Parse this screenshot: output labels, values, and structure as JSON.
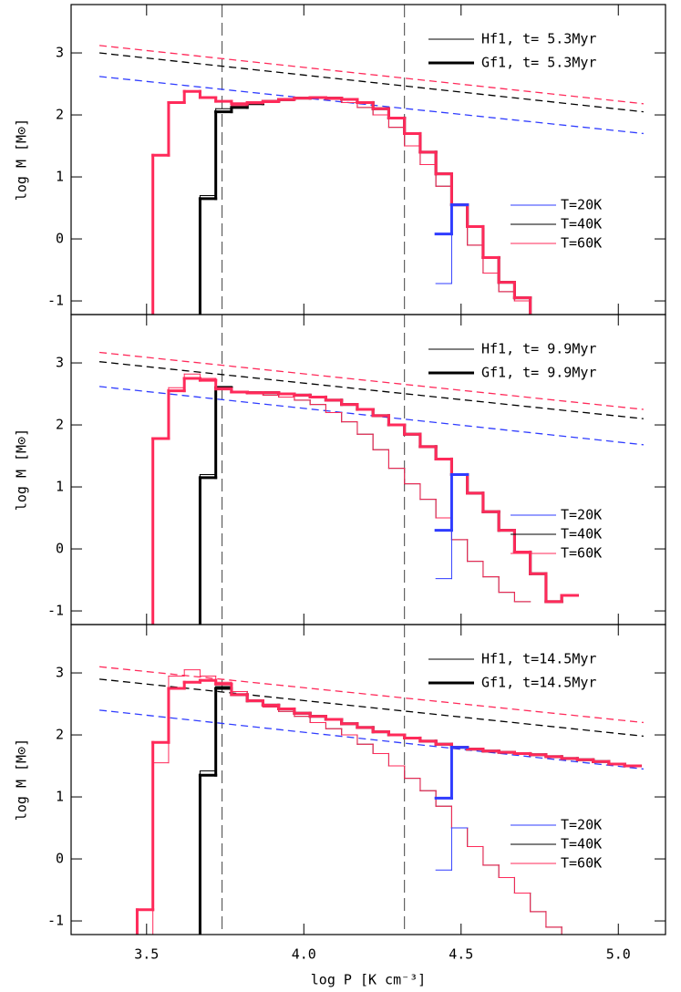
{
  "chart_data": [
    {
      "type": "histogram",
      "ylabel": "log M [M⊙]",
      "xlim": [
        3.26,
        5.15
      ],
      "ylim": [
        -1.22,
        3.78
      ],
      "yticks": [
        -1,
        0,
        1,
        2,
        3
      ],
      "vlines": [
        3.74,
        4.32
      ],
      "legend": [
        {
          "label": "Hf1, t= 5.3Myr",
          "width": 1
        },
        {
          "label": "Gf1, t= 5.3Myr",
          "width": 3
        }
      ],
      "color_legend": [
        {
          "label": "T=20K",
          "color": "#2f3cff"
        },
        {
          "label": "T=40K",
          "color": "#000000"
        },
        {
          "label": "T=60K",
          "color": "#ff2a5a"
        }
      ],
      "bins": [
        3.42,
        3.47,
        3.52,
        3.57,
        3.62,
        3.67,
        3.72,
        3.77,
        3.82,
        3.87,
        3.92,
        3.97,
        4.02,
        4.07,
        4.12,
        4.17,
        4.22,
        4.27,
        4.32,
        4.37,
        4.42,
        4.47,
        4.52,
        4.57,
        4.62,
        4.67,
        4.72,
        4.77,
        4.82,
        4.87,
        4.92,
        4.97,
        5.02,
        5.07,
        5.12,
        5.17
      ],
      "lines": [
        {
          "color": "#ff2a5a",
          "x": [
            3.35,
            5.08
          ],
          "values": [
            3.12,
            2.18
          ]
        },
        {
          "color": "#000000",
          "x": [
            3.35,
            5.08
          ],
          "values": [
            3.0,
            2.05
          ]
        },
        {
          "color": "#2f3cff",
          "x": [
            3.35,
            5.08
          ],
          "values": [
            2.62,
            1.7
          ]
        }
      ],
      "series": [
        {
          "color": "#000000",
          "width": 1,
          "values": [
            null,
            null,
            null,
            null,
            -1.5,
            0.7,
            2.1,
            2.15,
            2.18,
            2.2,
            2.23,
            2.26,
            2.27,
            2.25,
            2.2,
            2.12,
            2.0,
            1.8,
            1.5,
            1.2,
            0.85,
            0.55,
            -0.1,
            -0.55,
            -0.85,
            -1.0,
            -1.5,
            null,
            null,
            null,
            null,
            null,
            null,
            null,
            null
          ]
        },
        {
          "color": "#000000",
          "width": 3,
          "values": [
            null,
            null,
            null,
            null,
            -1.5,
            0.65,
            2.05,
            2.12,
            2.18,
            2.22,
            2.25,
            2.27,
            2.28,
            2.27,
            2.25,
            2.2,
            2.1,
            1.95,
            1.7,
            1.4,
            1.05,
            0.55,
            0.2,
            -0.3,
            -0.7,
            -0.95,
            -1.5,
            null,
            null,
            null,
            null,
            null,
            null,
            null,
            null
          ]
        },
        {
          "color": "#ff2a5a",
          "width": 1,
          "values": [
            null,
            -1.5,
            1.35,
            2.2,
            2.38,
            2.28,
            2.22,
            2.15,
            2.18,
            2.2,
            2.23,
            2.26,
            2.27,
            2.25,
            2.2,
            2.12,
            2.0,
            1.8,
            1.5,
            1.2,
            0.85,
            0.55,
            -0.1,
            -0.55,
            -0.85,
            -1.0,
            -1.5,
            null,
            null,
            null,
            null,
            null,
            null,
            null,
            null
          ]
        },
        {
          "color": "#ff2a5a",
          "width": 3,
          "values": [
            null,
            -1.5,
            1.35,
            2.2,
            2.38,
            2.28,
            2.22,
            2.18,
            2.2,
            2.22,
            2.25,
            2.27,
            2.28,
            2.27,
            2.25,
            2.2,
            2.1,
            1.95,
            1.7,
            1.4,
            1.05,
            0.55,
            0.2,
            -0.3,
            -0.7,
            -0.95,
            -1.5,
            null,
            null,
            null,
            null,
            null,
            null,
            null,
            null
          ]
        },
        {
          "color": "#2f3cff",
          "width": 1,
          "values": [
            null,
            null,
            null,
            null,
            null,
            null,
            null,
            null,
            null,
            null,
            null,
            null,
            null,
            null,
            null,
            null,
            null,
            null,
            null,
            null,
            -0.72,
            0.55,
            null,
            null,
            null,
            null,
            null,
            null,
            null,
            null,
            null,
            null,
            null,
            null,
            null
          ]
        },
        {
          "color": "#2f3cff",
          "width": 3,
          "values": [
            null,
            null,
            null,
            null,
            null,
            null,
            null,
            null,
            null,
            null,
            null,
            null,
            null,
            null,
            null,
            null,
            null,
            null,
            null,
            null,
            0.08,
            0.55,
            null,
            null,
            null,
            null,
            null,
            null,
            null,
            null,
            null,
            null,
            null,
            null,
            null
          ]
        }
      ]
    },
    {
      "type": "histogram",
      "ylabel": "log M [M⊙]",
      "xlim": [
        3.26,
        5.15
      ],
      "ylim": [
        -1.22,
        3.78
      ],
      "yticks": [
        -1,
        0,
        1,
        2,
        3
      ],
      "vlines": [
        3.74,
        4.32
      ],
      "legend": [
        {
          "label": "Hf1, t= 9.9Myr",
          "width": 1
        },
        {
          "label": "Gf1, t= 9.9Myr",
          "width": 3
        }
      ],
      "color_legend": [
        {
          "label": "T=20K",
          "color": "#2f3cff"
        },
        {
          "label": "T=40K",
          "color": "#000000"
        },
        {
          "label": "T=60K",
          "color": "#ff2a5a"
        }
      ],
      "bins": [
        3.42,
        3.47,
        3.52,
        3.57,
        3.62,
        3.67,
        3.72,
        3.77,
        3.82,
        3.87,
        3.92,
        3.97,
        4.02,
        4.07,
        4.12,
        4.17,
        4.22,
        4.27,
        4.32,
        4.37,
        4.42,
        4.47,
        4.52,
        4.57,
        4.62,
        4.67,
        4.72,
        4.77,
        4.82,
        4.87,
        4.92,
        4.97,
        5.02,
        5.07,
        5.12,
        5.17
      ],
      "lines": [
        {
          "color": "#ff2a5a",
          "x": [
            3.35,
            5.08
          ],
          "values": [
            3.17,
            2.25
          ]
        },
        {
          "color": "#000000",
          "x": [
            3.35,
            5.08
          ],
          "values": [
            3.02,
            2.1
          ]
        },
        {
          "color": "#2f3cff",
          "x": [
            3.35,
            5.08
          ],
          "values": [
            2.62,
            1.68
          ]
        }
      ],
      "series": [
        {
          "color": "#000000",
          "width": 1,
          "values": [
            null,
            null,
            null,
            null,
            -1.5,
            1.2,
            2.62,
            2.52,
            2.5,
            2.48,
            2.45,
            2.4,
            2.33,
            2.2,
            2.05,
            1.85,
            1.6,
            1.3,
            1.05,
            0.8,
            0.5,
            0.15,
            -0.2,
            -0.45,
            -0.7,
            -0.85,
            null,
            null,
            null,
            null,
            null,
            null,
            null,
            null,
            null
          ]
        },
        {
          "color": "#000000",
          "width": 3,
          "values": [
            null,
            null,
            null,
            null,
            -1.5,
            1.15,
            2.6,
            2.53,
            2.52,
            2.52,
            2.5,
            2.48,
            2.45,
            2.4,
            2.33,
            2.25,
            2.15,
            2.0,
            1.85,
            1.65,
            1.45,
            1.2,
            0.9,
            0.6,
            0.3,
            -0.05,
            -0.4,
            -0.85,
            -0.75,
            null,
            null,
            null,
            null,
            null,
            null
          ]
        },
        {
          "color": "#ff2a5a",
          "width": 1,
          "values": [
            null,
            -1.5,
            1.78,
            2.6,
            2.82,
            2.75,
            2.6,
            2.52,
            2.5,
            2.48,
            2.45,
            2.4,
            2.33,
            2.2,
            2.05,
            1.85,
            1.6,
            1.3,
            1.05,
            0.8,
            0.5,
            0.15,
            -0.2,
            -0.45,
            -0.7,
            -0.85,
            null,
            null,
            null,
            null,
            null,
            null,
            null,
            null,
            null
          ]
        },
        {
          "color": "#ff2a5a",
          "width": 3,
          "values": [
            null,
            -1.5,
            1.78,
            2.55,
            2.75,
            2.72,
            2.58,
            2.53,
            2.52,
            2.52,
            2.5,
            2.48,
            2.45,
            2.4,
            2.33,
            2.25,
            2.15,
            2.0,
            1.85,
            1.65,
            1.45,
            1.2,
            0.9,
            0.6,
            0.3,
            -0.05,
            -0.4,
            -0.85,
            -0.75,
            null,
            null,
            null,
            null,
            null,
            null
          ]
        },
        {
          "color": "#2f3cff",
          "width": 1,
          "values": [
            null,
            null,
            null,
            null,
            null,
            null,
            null,
            null,
            null,
            null,
            null,
            null,
            null,
            null,
            null,
            null,
            null,
            null,
            null,
            null,
            -0.48,
            1.2,
            null,
            null,
            null,
            null,
            null,
            null,
            null,
            null,
            null,
            null,
            null,
            null,
            null
          ]
        },
        {
          "color": "#2f3cff",
          "width": 3,
          "values": [
            null,
            null,
            null,
            null,
            null,
            null,
            null,
            null,
            null,
            null,
            null,
            null,
            null,
            null,
            null,
            null,
            null,
            null,
            null,
            null,
            0.3,
            1.2,
            null,
            null,
            null,
            null,
            null,
            null,
            null,
            null,
            null,
            null,
            null,
            null,
            null
          ]
        }
      ]
    },
    {
      "type": "histogram",
      "ylabel": "log M [M⊙]",
      "xlabel": "log P [K cm⁻³]",
      "xlim": [
        3.26,
        5.15
      ],
      "ylim": [
        -1.22,
        3.78
      ],
      "yticks": [
        -1,
        0,
        1,
        2,
        3
      ],
      "xticks": [
        3.5,
        {
          "value": 4,
          "label": "4.0"
        },
        4.5,
        {
          "value": 5,
          "label": "5.0"
        }
      ],
      "vlines": [
        3.74,
        4.32
      ],
      "legend": [
        {
          "label": "Hf1, t=14.5Myr",
          "width": 1
        },
        {
          "label": "Gf1, t=14.5Myr",
          "width": 3
        }
      ],
      "color_legend": [
        {
          "label": "T=20K",
          "color": "#2f3cff"
        },
        {
          "label": "T=40K",
          "color": "#000000"
        },
        {
          "label": "T=60K",
          "color": "#ff2a5a"
        }
      ],
      "bins": [
        3.42,
        3.47,
        3.52,
        3.57,
        3.62,
        3.67,
        3.72,
        3.77,
        3.82,
        3.87,
        3.92,
        3.97,
        4.02,
        4.07,
        4.12,
        4.17,
        4.22,
        4.27,
        4.32,
        4.37,
        4.42,
        4.47,
        4.52,
        4.57,
        4.62,
        4.67,
        4.72,
        4.77,
        4.82,
        4.87,
        4.92,
        4.97,
        5.02,
        5.07,
        5.12,
        5.17
      ],
      "lines": [
        {
          "color": "#ff2a5a",
          "x": [
            3.35,
            5.08
          ],
          "values": [
            3.1,
            2.2
          ]
        },
        {
          "color": "#000000",
          "x": [
            3.35,
            5.08
          ],
          "values": [
            2.9,
            1.98
          ]
        },
        {
          "color": "#2f3cff",
          "x": [
            3.35,
            5.08
          ],
          "values": [
            2.4,
            1.45
          ]
        }
      ],
      "series": [
        {
          "color": "#000000",
          "width": 1,
          "values": [
            null,
            null,
            null,
            null,
            -1.5,
            1.42,
            2.78,
            2.7,
            2.55,
            2.45,
            2.38,
            2.3,
            2.2,
            2.1,
            2.0,
            1.85,
            1.7,
            1.5,
            1.3,
            1.1,
            0.85,
            0.5,
            0.2,
            -0.1,
            -0.3,
            -0.55,
            -0.85,
            -1.1,
            -1.5,
            null,
            null,
            null,
            null,
            null,
            null
          ]
        },
        {
          "color": "#000000",
          "width": 3,
          "values": [
            null,
            null,
            null,
            null,
            -1.5,
            1.35,
            2.75,
            2.65,
            2.55,
            2.48,
            2.42,
            2.35,
            2.3,
            2.25,
            2.18,
            2.12,
            2.05,
            2.0,
            1.95,
            1.9,
            1.85,
            1.8,
            1.77,
            1.74,
            1.72,
            1.7,
            1.68,
            1.65,
            1.62,
            1.6,
            1.57,
            1.53,
            1.5,
            null,
            null
          ]
        },
        {
          "color": "#ff2a5a",
          "width": 1,
          "values": [
            null,
            -1.5,
            1.55,
            2.95,
            3.05,
            2.95,
            2.85,
            2.7,
            2.55,
            2.45,
            2.38,
            2.3,
            2.2,
            2.1,
            2.0,
            1.85,
            1.7,
            1.5,
            1.3,
            1.1,
            0.85,
            0.5,
            0.2,
            -0.1,
            -0.3,
            -0.55,
            -0.85,
            -1.1,
            -1.5,
            null,
            null,
            null,
            null,
            null,
            null
          ]
        },
        {
          "color": "#ff2a5a",
          "width": 3,
          "values": [
            -1.5,
            -0.82,
            1.88,
            2.75,
            2.85,
            2.88,
            2.82,
            2.65,
            2.55,
            2.48,
            2.42,
            2.35,
            2.3,
            2.25,
            2.18,
            2.12,
            2.05,
            2.0,
            1.95,
            1.9,
            1.85,
            1.8,
            1.77,
            1.74,
            1.72,
            1.7,
            1.68,
            1.65,
            1.62,
            1.6,
            1.57,
            1.53,
            1.5,
            null,
            null
          ]
        },
        {
          "color": "#2f3cff",
          "width": 1,
          "values": [
            null,
            null,
            null,
            null,
            null,
            null,
            null,
            null,
            null,
            null,
            null,
            null,
            null,
            null,
            null,
            null,
            null,
            null,
            null,
            null,
            -0.18,
            0.5,
            null,
            null,
            null,
            null,
            null,
            null,
            null,
            null,
            null,
            null,
            null,
            null,
            null
          ]
        },
        {
          "color": "#2f3cff",
          "width": 3,
          "values": [
            null,
            null,
            null,
            null,
            null,
            null,
            null,
            null,
            null,
            null,
            null,
            null,
            null,
            null,
            null,
            null,
            null,
            null,
            null,
            null,
            0.98,
            1.8,
            null,
            null,
            null,
            null,
            null,
            null,
            null,
            null,
            null,
            null,
            null,
            null,
            null
          ]
        }
      ]
    }
  ]
}
